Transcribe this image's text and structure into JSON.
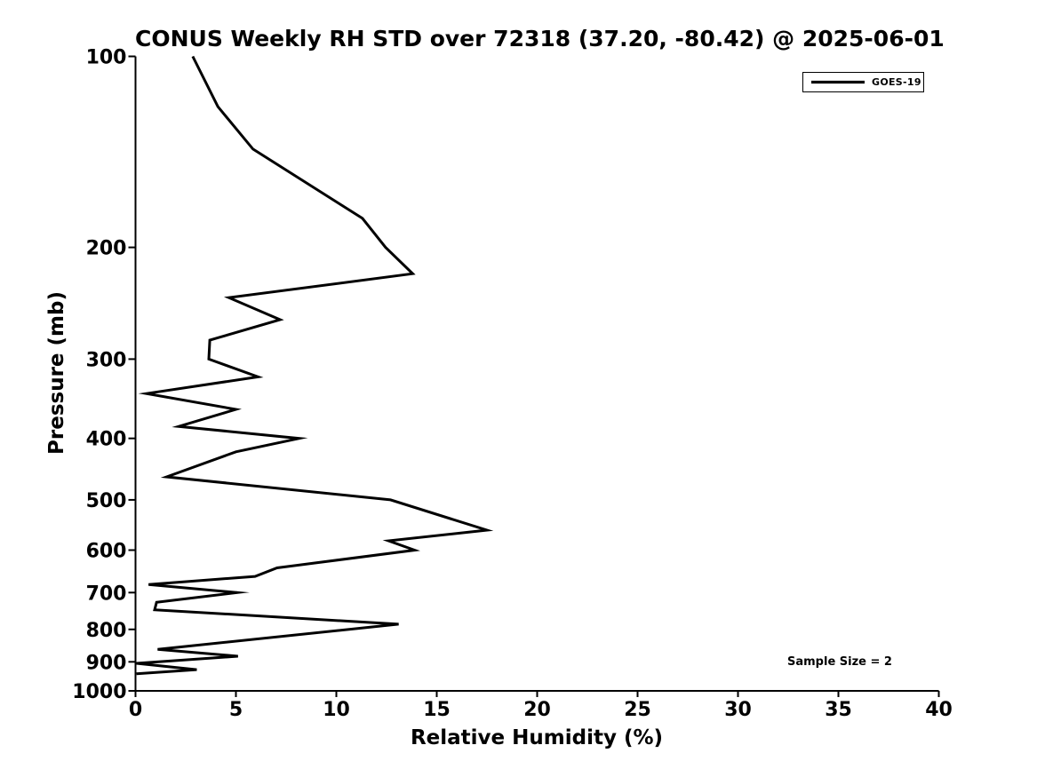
{
  "figure": {
    "background_color": "#ffffff",
    "axis_color": "#000000",
    "text_color": "#000000"
  },
  "chart_data": {
    "type": "line",
    "title": "CONUS Weekly RH STD over 72318 (37.20, -80.42) @ 2025-06-01",
    "xlabel": "Relative Humidity (%)",
    "ylabel": "Pressure (mb)",
    "xlim": [
      0,
      40
    ],
    "ylim": [
      1000,
      100
    ],
    "yscale": "log",
    "grid": false,
    "box": false,
    "x_ticks": [
      0,
      5,
      10,
      15,
      20,
      25,
      30,
      35,
      40
    ],
    "y_ticks": [
      100,
      200,
      300,
      400,
      500,
      600,
      700,
      800,
      900,
      1000
    ],
    "legend_position": "upper right",
    "series": [
      {
        "name": "GOES-19",
        "color": "#000000",
        "points": [
          {
            "p": 100,
            "rh": 2.85
          },
          {
            "p": 120,
            "rh": 4.1
          },
          {
            "p": 140,
            "rh": 5.85
          },
          {
            "p": 180,
            "rh": 11.3
          },
          {
            "p": 200,
            "rh": 12.45
          },
          {
            "p": 220,
            "rh": 13.8
          },
          {
            "p": 240,
            "rh": 4.65
          },
          {
            "p": 260,
            "rh": 7.2
          },
          {
            "p": 280,
            "rh": 3.7
          },
          {
            "p": 300,
            "rh": 3.65
          },
          {
            "p": 320,
            "rh": 6.1
          },
          {
            "p": 340,
            "rh": 0.55
          },
          {
            "p": 360,
            "rh": 5.0
          },
          {
            "p": 383,
            "rh": 2.15
          },
          {
            "p": 400,
            "rh": 8.15
          },
          {
            "p": 420,
            "rh": 5.0
          },
          {
            "p": 460,
            "rh": 1.55
          },
          {
            "p": 500,
            "rh": 12.7
          },
          {
            "p": 558,
            "rh": 17.5
          },
          {
            "p": 580,
            "rh": 12.6
          },
          {
            "p": 600,
            "rh": 13.9
          },
          {
            "p": 640,
            "rh": 7.05
          },
          {
            "p": 660,
            "rh": 5.95
          },
          {
            "p": 680,
            "rh": 0.65
          },
          {
            "p": 700,
            "rh": 5.05
          },
          {
            "p": 725,
            "rh": 1.05
          },
          {
            "p": 745,
            "rh": 0.95
          },
          {
            "p": 785,
            "rh": 13.1
          },
          {
            "p": 860,
            "rh": 1.1
          },
          {
            "p": 882,
            "rh": 5.1
          },
          {
            "p": 905,
            "rh": 0.05
          },
          {
            "p": 926,
            "rh": 3.05
          },
          {
            "p": 940,
            "rh": 0.05
          }
        ]
      }
    ],
    "annotations": [
      {
        "text": "Sample Size = 2",
        "position": "lower right"
      }
    ]
  }
}
